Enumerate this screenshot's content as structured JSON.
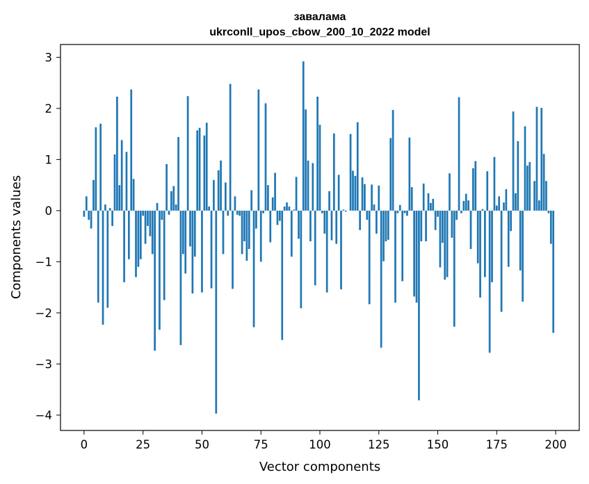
{
  "chart_data": {
    "type": "bar",
    "title_lines": [
      "завалама",
      "ukrconll_upos_cbow_200_10_2022 model"
    ],
    "xlabel": "Vector components",
    "ylabel": "Components values",
    "xlim": [
      -10,
      210
    ],
    "ylim": [
      -4.3,
      3.25
    ],
    "xticks": [
      0,
      25,
      50,
      75,
      100,
      125,
      150,
      175,
      200
    ],
    "yticks": [
      3,
      2,
      1,
      0,
      -1,
      -2,
      -3,
      -4
    ],
    "ytick_labels": [
      "3",
      "2",
      "1",
      "0",
      "−1",
      "−2",
      "−3",
      "−4"
    ],
    "bar_color": "#1f77b4",
    "grid": false,
    "values": [
      -0.12,
      0.28,
      -0.18,
      -0.35,
      0.6,
      1.63,
      -1.8,
      1.7,
      -2.23,
      0.12,
      -1.9,
      0.05,
      -0.3,
      1.1,
      2.23,
      0.5,
      1.38,
      -1.4,
      1.15,
      -0.95,
      2.37,
      0.62,
      -1.3,
      -1.1,
      -0.95,
      -0.1,
      -0.65,
      -0.3,
      -0.5,
      -0.85,
      -2.74,
      0.15,
      -2.33,
      -0.18,
      -1.75,
      0.91,
      -0.08,
      0.38,
      0.48,
      0.12,
      1.44,
      -2.63,
      -0.85,
      -1.23,
      2.24,
      -0.7,
      -1.62,
      -0.9,
      1.57,
      1.62,
      -1.6,
      1.47,
      1.72,
      0.08,
      -1.52,
      0.6,
      -3.97,
      0.79,
      0.98,
      -0.85,
      0.55,
      -0.1,
      2.48,
      -1.53,
      0.28,
      -0.08,
      -0.1,
      -0.85,
      -0.6,
      -0.98,
      -0.75,
      0.4,
      -2.28,
      -0.35,
      2.37,
      -1.0,
      -0.05,
      2.1,
      0.5,
      -0.62,
      0.26,
      0.74,
      -0.28,
      -0.2,
      -2.53,
      0.08,
      0.16,
      0.08,
      -0.9,
      0.02,
      0.66,
      -0.55,
      -1.91,
      2.92,
      1.98,
      0.98,
      -0.6,
      0.93,
      -1.46,
      2.23,
      1.68,
      -0.05,
      -0.45,
      -1.6,
      0.38,
      -0.58,
      1.51,
      -0.65,
      0.7,
      -1.54,
      0.02,
      -0.02,
      0.0,
      1.5,
      0.78,
      0.68,
      1.73,
      -0.38,
      0.65,
      0.52,
      -0.18,
      -1.83,
      0.51,
      0.12,
      -0.45,
      0.49,
      -2.68,
      -0.99,
      -0.6,
      -0.57,
      1.42,
      1.97,
      -1.8,
      -0.05,
      0.11,
      -1.38,
      -0.05,
      -0.1,
      1.43,
      0.46,
      -1.68,
      -1.8,
      -3.71,
      -0.6,
      0.53,
      -0.6,
      0.34,
      0.15,
      0.23,
      -0.38,
      -0.12,
      -1.11,
      -0.63,
      -1.35,
      -1.3,
      0.73,
      -0.53,
      -2.27,
      -0.18,
      2.22,
      -0.05,
      0.19,
      0.33,
      0.2,
      -0.75,
      0.83,
      0.97,
      -1.03,
      -1.7,
      0.03,
      -1.3,
      0.77,
      -2.78,
      -1.4,
      1.05,
      0.1,
      0.28,
      -1.98,
      0.16,
      0.42,
      -1.1,
      -0.4,
      1.94,
      0.34,
      1.36,
      -1.17,
      -1.78,
      1.65,
      0.88,
      0.95,
      0.0,
      0.58,
      2.03,
      0.2,
      2.01,
      1.11,
      0.58,
      -0.05,
      -0.65,
      -2.39
    ]
  }
}
